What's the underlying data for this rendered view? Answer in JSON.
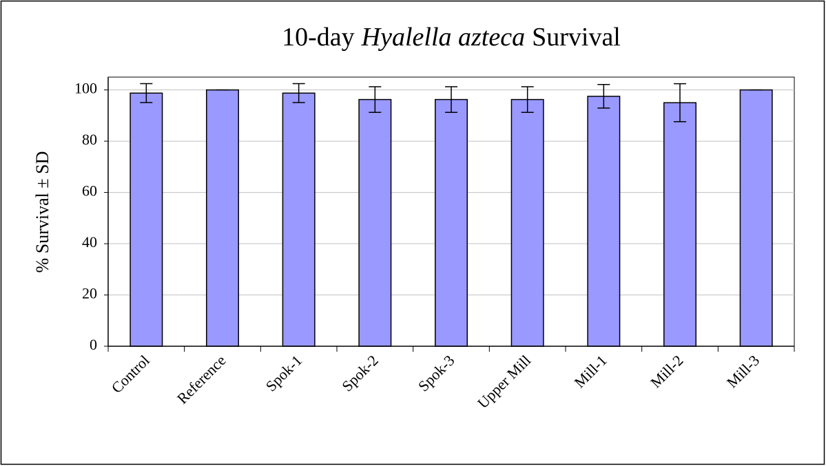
{
  "chart_data": {
    "type": "bar",
    "title": [
      "10-day",
      "Hyalella azteca",
      "Survival"
    ],
    "y_label": "% Survival ± SD",
    "categories": [
      "Control",
      "Reference",
      "Spok-1",
      "Spok-2",
      "Spok-3",
      "Upper Mill",
      "Mill-1",
      "Mill-2",
      "Mill-3"
    ],
    "values": [
      98.75,
      100,
      98.75,
      96.25,
      96.25,
      96.25,
      97.5,
      95,
      100
    ],
    "errors": [
      3.7,
      0,
      3.7,
      5,
      5,
      5,
      4.6,
      7.4,
      0
    ],
    "color": "#9999ff",
    "ylim": [
      0,
      105
    ],
    "yticks": [
      0,
      20,
      40,
      60,
      80,
      100
    ],
    "grid": true
  }
}
